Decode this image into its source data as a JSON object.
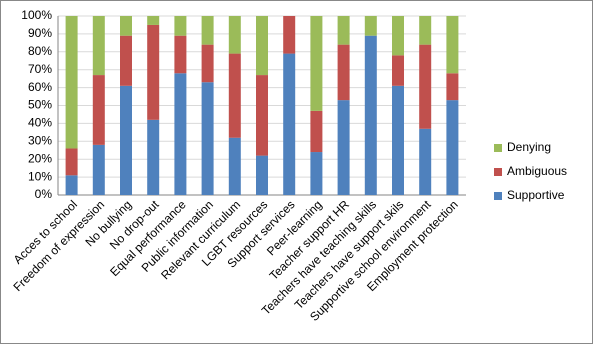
{
  "chart_data": {
    "type": "stacked_bar",
    "categories": [
      "Acces to school",
      "Freedom of expression",
      "No bullying",
      "No drop-out",
      "Equal performance",
      "Public information",
      "Relevant curriculum",
      "LGBT resources",
      "Support services",
      "Peer-learning",
      "Teacher support HR",
      "Teachers have teaching skills",
      "Teachers have support skils",
      "Supportive school environment",
      "Employment protection"
    ],
    "series": [
      {
        "name": "Supportive",
        "color": "#4f81bd",
        "values": [
          11,
          28,
          61,
          42,
          68,
          63,
          32,
          22,
          79,
          24,
          53,
          89,
          61,
          37,
          53
        ]
      },
      {
        "name": "Ambiguous",
        "color": "#c0504d",
        "values": [
          15,
          39,
          28,
          53,
          21,
          21,
          47,
          45,
          21,
          23,
          31,
          0,
          17,
          47,
          15
        ]
      },
      {
        "name": "Denying",
        "color": "#9bbb59",
        "values": [
          74,
          33,
          11,
          5,
          11,
          16,
          21,
          33,
          0,
          53,
          16,
          11,
          22,
          16,
          32
        ]
      }
    ],
    "ylim": [
      0,
      100
    ],
    "yticks": [
      {
        "value": 0,
        "label": "0%"
      },
      {
        "value": 10,
        "label": "10%"
      },
      {
        "value": 20,
        "label": "20%"
      },
      {
        "value": 30,
        "label": "30%"
      },
      {
        "value": 40,
        "label": "40%"
      },
      {
        "value": 50,
        "label": "50%"
      },
      {
        "value": 60,
        "label": "60%"
      },
      {
        "value": 70,
        "label": "70%"
      },
      {
        "value": 80,
        "label": "80%"
      },
      {
        "value": 90,
        "label": "90%"
      },
      {
        "value": 100,
        "label": "100%"
      }
    ],
    "grid": true,
    "legend": "right"
  }
}
